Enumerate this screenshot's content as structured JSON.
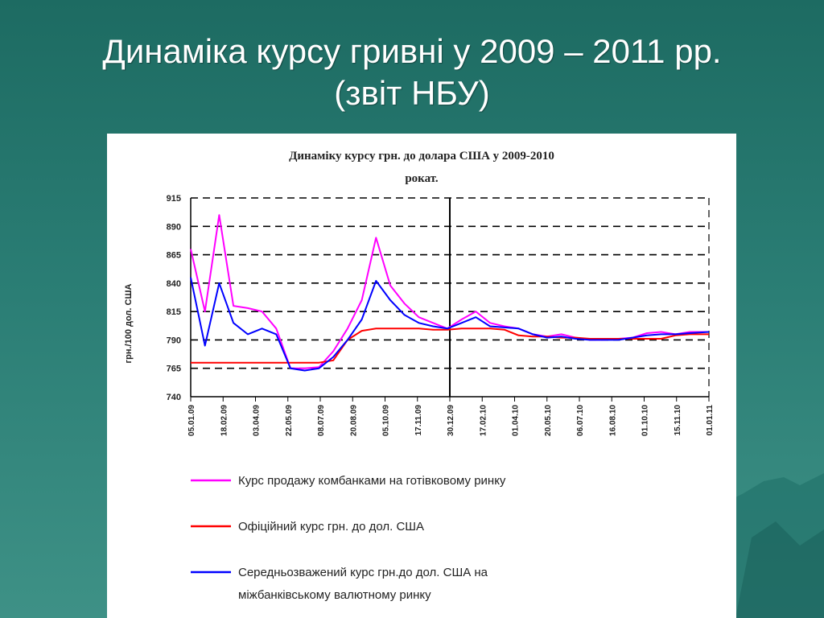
{
  "slide": {
    "title_line1": "Динаміка курсу гривні у 2009 – 2011 рр.",
    "title_line2": "(звіт НБУ)"
  },
  "colors": {
    "background": "#2a7d74",
    "cash_sale": "#ff00ff",
    "official": "#ff0000",
    "interbank": "#0000ff"
  },
  "chart_data": {
    "type": "line",
    "title_line1": "Динаміку курсу грн. до долара США у 2009-2010",
    "title_line2": "рокат.",
    "ylabel": "грн./100 дол. США",
    "ylim": [
      740,
      915
    ],
    "yticks": [
      740,
      765,
      790,
      815,
      840,
      865,
      890,
      915
    ],
    "grid": true,
    "x_tick_labels": [
      "05.01.09",
      "18.02.09",
      "03.04.09",
      "22.05.09",
      "08.07.09",
      "20.08.09",
      "05.10.09",
      "17.11.09",
      "30.12.09",
      "17.02.10",
      "01.04.10",
      "20.05.10",
      "06.07.10",
      "16.08.10",
      "01.10.10",
      "15.11.10",
      "01.01.11"
    ],
    "year_divider_at": "30.12.09",
    "x_days": [
      0,
      20,
      40,
      60,
      80,
      100,
      120,
      140,
      160,
      180,
      200,
      220,
      240,
      260,
      280,
      300,
      320,
      340,
      360,
      380,
      400,
      420,
      440,
      460,
      480,
      500,
      520,
      540,
      560,
      580,
      600,
      620,
      640,
      660,
      680,
      700,
      727
    ],
    "series": [
      {
        "name": "Курс продажу комбанками на готівковому ринку",
        "color": "#ff00ff",
        "values": [
          870,
          815,
          900,
          820,
          818,
          815,
          800,
          765,
          765,
          766,
          780,
          800,
          825,
          880,
          838,
          822,
          810,
          805,
          800,
          808,
          815,
          805,
          802,
          800,
          795,
          793,
          795,
          792,
          790,
          790,
          791,
          792,
          796,
          797,
          795,
          797,
          797
        ]
      },
      {
        "name": "Офіційний курс грн. до дол. США",
        "color": "#ff0000",
        "values": [
          770,
          770,
          770,
          770,
          770,
          770,
          770,
          770,
          770,
          770,
          772,
          790,
          798,
          800,
          800,
          800,
          800,
          799,
          799,
          800,
          800,
          800,
          799,
          794,
          793,
          793,
          792,
          792,
          791,
          791,
          791,
          791,
          791,
          791,
          794,
          795,
          795
        ]
      },
      {
        "name": "Середньозважений курс грн.до дол. США на міжбанківському валютному ринку",
        "color": "#0000ff",
        "values": [
          845,
          785,
          840,
          805,
          795,
          800,
          795,
          765,
          763,
          765,
          775,
          790,
          808,
          842,
          825,
          812,
          805,
          802,
          800,
          805,
          810,
          802,
          801,
          800,
          795,
          792,
          793,
          791,
          790,
          790,
          790,
          792,
          794,
          795,
          795,
          796,
          797
        ]
      }
    ],
    "legend": [
      "Курс продажу комбанками на готівковому ринку",
      "Офіційний курс грн. до дол. США",
      "Середньозважений курс грн.до  дол. США на",
      "міжбанківському валютному ринку"
    ]
  }
}
